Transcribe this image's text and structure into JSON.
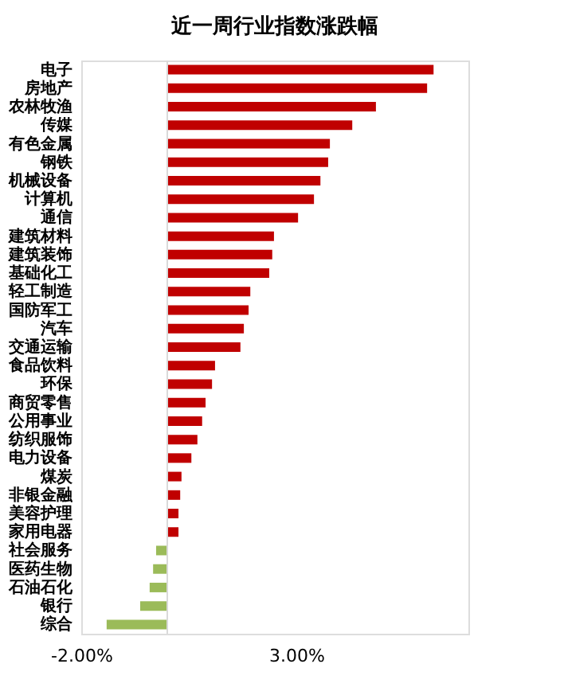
{
  "chart_data": {
    "type": "bar",
    "orientation": "horizontal",
    "title": "近一周行业指数涨跌幅",
    "categories": [
      "电子",
      "房地产",
      "农林牧渔",
      "传媒",
      "有色金属",
      "钢铁",
      "机械设备",
      "计算机",
      "通信",
      "建筑材料",
      "建筑装饰",
      "基础化工",
      "轻工制造",
      "国防军工",
      "汽车",
      "交通运输",
      "食品饮料",
      "环保",
      "商贸零售",
      "公用事业",
      "纺织服饰",
      "电力设备",
      "煤炭",
      "非银金融",
      "美容护理",
      "家用电器",
      "社会服务",
      "医药生物",
      "石油石化",
      "银行",
      "综合"
    ],
    "values": [
      6.19,
      6.04,
      4.85,
      4.3,
      3.78,
      3.74,
      3.56,
      3.41,
      3.04,
      2.48,
      2.44,
      2.37,
      1.93,
      1.89,
      1.78,
      1.7,
      1.11,
      1.04,
      0.89,
      0.81,
      0.7,
      0.56,
      0.33,
      0.3,
      0.26,
      0.26,
      -0.26,
      -0.33,
      -0.41,
      -0.63,
      -1.41
    ],
    "colors": [
      "#c00000",
      "#c00000",
      "#c00000",
      "#c00000",
      "#c00000",
      "#c00000",
      "#c00000",
      "#c00000",
      "#c00000",
      "#c00000",
      "#c00000",
      "#c00000",
      "#c00000",
      "#c00000",
      "#c00000",
      "#c00000",
      "#c00000",
      "#c00000",
      "#c00000",
      "#c00000",
      "#c00000",
      "#c00000",
      "#c00000",
      "#c00000",
      "#c00000",
      "#c00000",
      "#9bbb59",
      "#9bbb59",
      "#9bbb59",
      "#9bbb59",
      "#9bbb59"
    ],
    "xlim": [
      -2,
      7
    ],
    "xticks": [
      {
        "value": -2,
        "label": "-2.00%"
      },
      {
        "value": 3,
        "label": "3.00%"
      }
    ],
    "ref_lines": [
      {
        "axis": "x",
        "value": 0,
        "color": "#d9d9d9"
      }
    ],
    "grid": false
  }
}
